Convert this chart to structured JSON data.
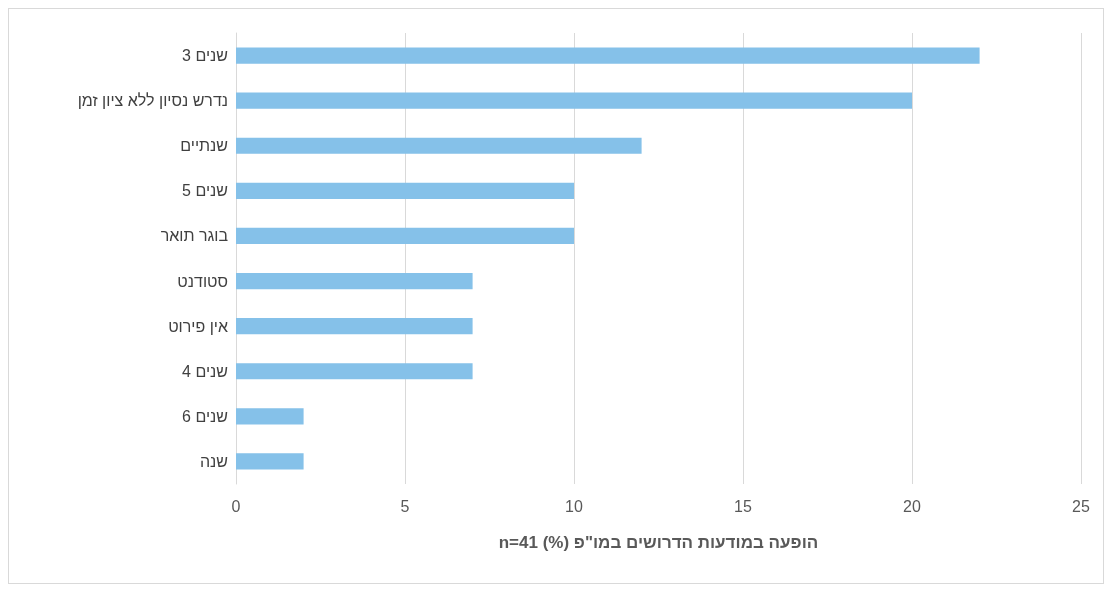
{
  "chart_data": {
    "type": "bar",
    "orientation": "horizontal",
    "categories": [
      "3 שנים",
      "נדרש נסיון ללא ציון זמן",
      "שנתיים",
      "5 שנים",
      "בוגר תואר",
      "סטודנט",
      "אין פירוט",
      "4 שנים",
      "6 שנים",
      "שנה"
    ],
    "values": [
      22,
      20,
      12,
      10,
      10,
      7,
      7,
      7,
      2,
      2
    ],
    "color": "#85c1e9",
    "xlabel": "הופעה במודעות הדרושים במו\"פ (%) n=41",
    "xlim": [
      0,
      25
    ],
    "xticks": [
      0,
      5,
      10,
      15,
      20,
      25
    ],
    "grid": "x"
  }
}
